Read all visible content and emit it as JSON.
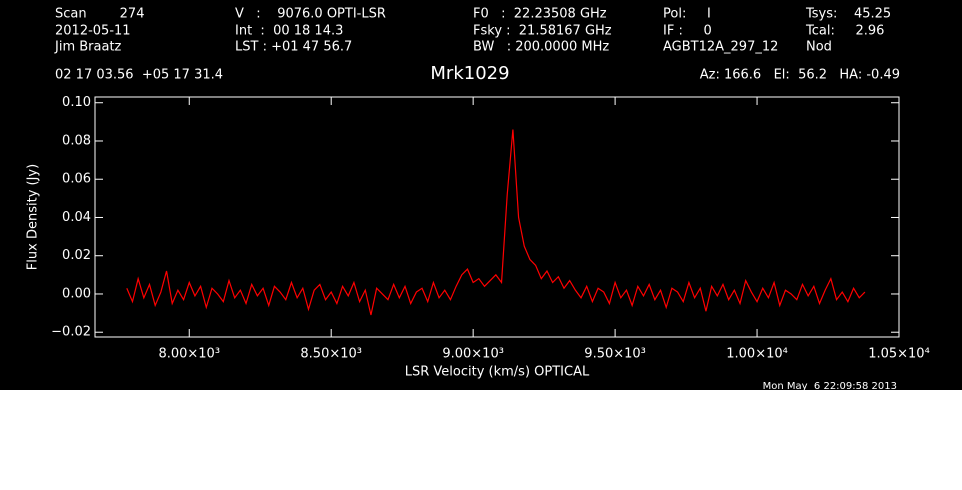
{
  "chart_data": {
    "type": "line",
    "header": [
      [
        "Scan        274",
        "2012-05-11",
        "Jim Braatz"
      ],
      [
        "V   :    9076.0 OPTI-LSR",
        "Int  :  00 18 14.3",
        "LST : +01 47 56.7"
      ],
      [
        "F0   :  22.23508 GHz",
        "Fsky :  21.58167 GHz",
        "BW   : 200.0000 MHz"
      ],
      [
        "Pol:     I",
        "IF :     0",
        "AGBT12A_297_12"
      ],
      [
        "Tsys:    45.25",
        "Tcal:     2.96",
        "Nod"
      ]
    ],
    "coordinates": "02 17 03.56  +05 17 31.4",
    "title": "Mrk1029",
    "pointing": "Az: 166.6   El:  56.2   HA: -0.49",
    "timestamp": "Mon May  6 22:09:58 2013",
    "x_label": "LSR Velocity (km/s) OPTICAL",
    "y_label": "Flux Density (Jy)",
    "color": "#ff0000",
    "xlim": [
      7668,
      10500
    ],
    "ylim": [
      -0.0225,
      0.103
    ],
    "xticks": [
      {
        "value": 8000,
        "label": "8.00×10³"
      },
      {
        "value": 8500,
        "label": "8.50×10³"
      },
      {
        "value": 9000,
        "label": "9.00×10³"
      },
      {
        "value": 9500,
        "label": "9.50×10³"
      },
      {
        "value": 10000,
        "label": "1.00×10⁴"
      },
      {
        "value": 10500,
        "label": "1.05×10⁴"
      }
    ],
    "yticks": [
      {
        "value": -0.02,
        "label": "−0.02"
      },
      {
        "value": 0,
        "label": "0.00"
      },
      {
        "value": 0.02,
        "label": "0.02"
      },
      {
        "value": 0.04,
        "label": "0.04"
      },
      {
        "value": 0.06,
        "label": "0.06"
      },
      {
        "value": 0.08,
        "label": "0.08"
      },
      {
        "value": 0.1,
        "label": "0.10"
      }
    ],
    "x": [
      7780,
      7800,
      7820,
      7840,
      7860,
      7880,
      7900,
      7920,
      7940,
      7960,
      7980,
      8000,
      8020,
      8040,
      8060,
      8080,
      8100,
      8120,
      8140,
      8160,
      8180,
      8200,
      8220,
      8240,
      8260,
      8280,
      8300,
      8320,
      8340,
      8360,
      8380,
      8400,
      8420,
      8440,
      8460,
      8480,
      8500,
      8520,
      8540,
      8560,
      8580,
      8600,
      8620,
      8640,
      8660,
      8680,
      8700,
      8720,
      8740,
      8760,
      8780,
      8800,
      8820,
      8840,
      8860,
      8880,
      8900,
      8920,
      8940,
      8960,
      8980,
      9000,
      9020,
      9040,
      9060,
      9080,
      9100,
      9120,
      9140,
      9160,
      9180,
      9200,
      9220,
      9240,
      9260,
      9280,
      9300,
      9320,
      9340,
      9360,
      9380,
      9400,
      9420,
      9440,
      9460,
      9480,
      9500,
      9520,
      9540,
      9560,
      9580,
      9600,
      9620,
      9640,
      9660,
      9680,
      9700,
      9720,
      9740,
      9760,
      9780,
      9800,
      9820,
      9840,
      9860,
      9880,
      9900,
      9920,
      9940,
      9960,
      9980,
      10000,
      10020,
      10040,
      10060,
      10080,
      10100,
      10120,
      10140,
      10160,
      10180,
      10200,
      10220,
      10240,
      10260,
      10280,
      10300,
      10320,
      10340,
      10360,
      10380
    ],
    "values": [
      0.003,
      -0.004,
      0.008,
      -0.002,
      0.005,
      -0.006,
      0.001,
      0.012,
      -0.005,
      0.002,
      -0.003,
      0.006,
      -0.001,
      0.004,
      -0.007,
      0.003,
      0.0,
      -0.004,
      0.007,
      -0.002,
      0.002,
      -0.005,
      0.005,
      -0.001,
      0.003,
      -0.006,
      0.004,
      0.001,
      -0.003,
      0.006,
      -0.002,
      0.003,
      -0.008,
      0.002,
      0.005,
      -0.003,
      0.001,
      -0.005,
      0.004,
      -0.001,
      0.006,
      -0.004,
      0.002,
      -0.011,
      0.003,
      0.0,
      -0.003,
      0.005,
      -0.002,
      0.004,
      -0.005,
      0.001,
      0.003,
      -0.004,
      0.006,
      -0.002,
      0.002,
      -0.003,
      0.004,
      0.01,
      0.013,
      0.006,
      0.008,
      0.004,
      0.007,
      0.01,
      0.006,
      0.052,
      0.086,
      0.04,
      0.025,
      0.018,
      0.015,
      0.008,
      0.012,
      0.006,
      0.009,
      0.003,
      0.007,
      0.002,
      -0.002,
      0.004,
      -0.004,
      0.003,
      0.001,
      -0.005,
      0.006,
      -0.002,
      0.002,
      -0.006,
      0.004,
      -0.001,
      0.005,
      -0.003,
      0.002,
      -0.007,
      0.003,
      0.001,
      -0.004,
      0.006,
      -0.002,
      0.003,
      -0.009,
      0.004,
      -0.001,
      0.005,
      -0.003,
      0.002,
      -0.005,
      0.007,
      0.001,
      -0.004,
      0.003,
      -0.002,
      0.006,
      -0.006,
      0.002,
      0.0,
      -0.003,
      0.005,
      -0.001,
      0.004,
      -0.005,
      0.002,
      0.008,
      -0.003,
      0.001,
      -0.004,
      0.003,
      -0.002,
      0.001
    ]
  }
}
